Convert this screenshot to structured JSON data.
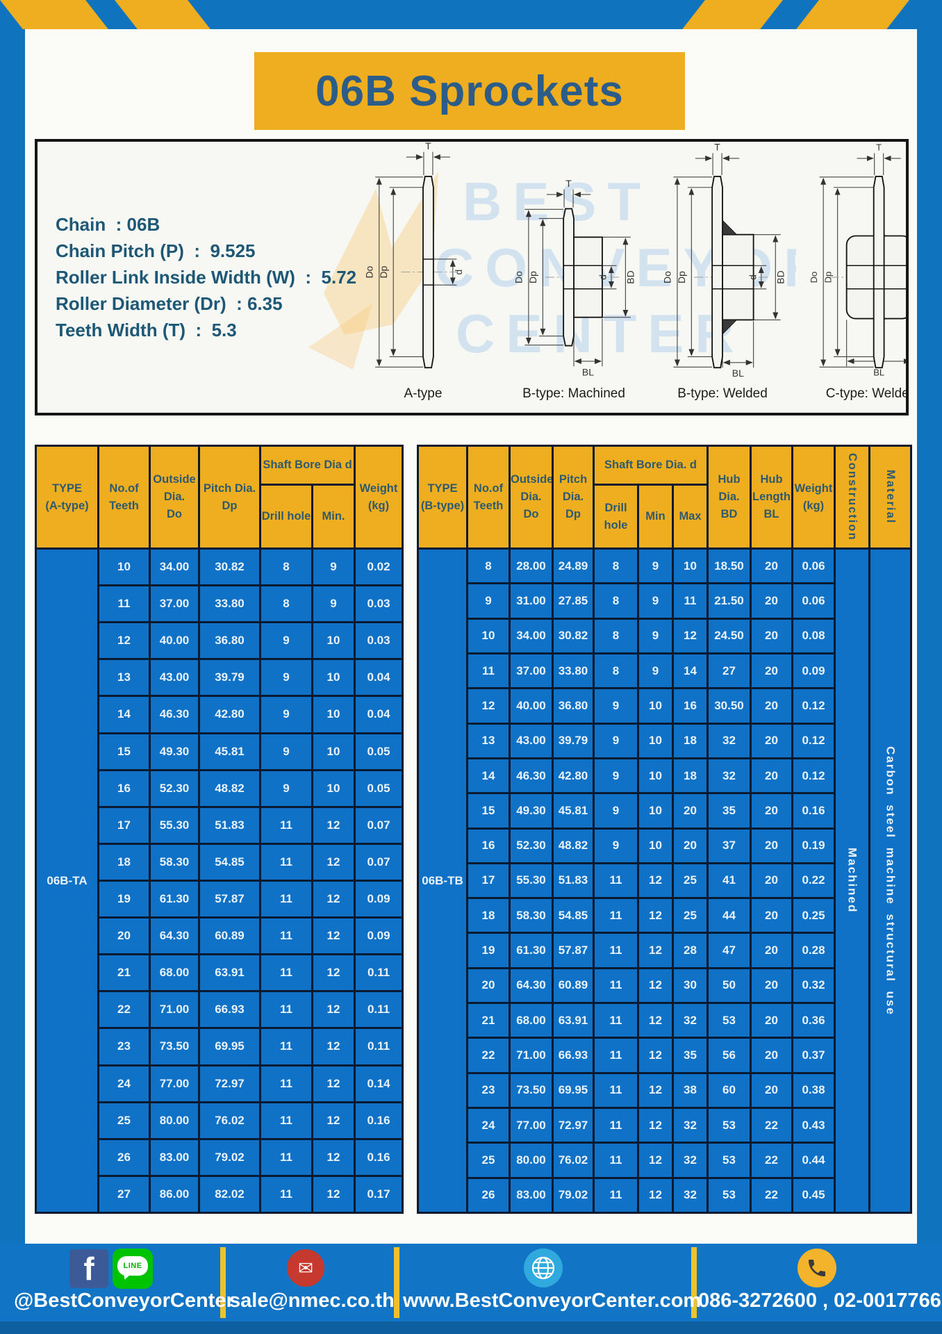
{
  "title": "06B Sprockets",
  "specs": {
    "lines": "Chain  : 06B\nChain Pitch (P)  :  9.525\nRoller Link Inside Width (W)  :  5.72\nRoller Diameter (Dr)  : 6.35\nTeeth Width (T)  :  5.3"
  },
  "diagrams": {
    "dims": {
      "T": "T",
      "Do": "Do",
      "Dp": "Dp",
      "d": "d",
      "BD": "BD",
      "BL": "BL"
    },
    "figures": [
      {
        "label": "A-type"
      },
      {
        "label": "B-type: Machined"
      },
      {
        "label": "B-type: Welded"
      },
      {
        "label": "C-type: Welded"
      }
    ],
    "watermark": {
      "line1": "BEST",
      "line2": "CONVEYOR",
      "line3": "CENTER"
    }
  },
  "tables": {
    "a": {
      "type_label": "06B-TA",
      "headers": {
        "type": "TYPE\n(A-type)",
        "teeth": "No.of\nTeeth",
        "outside": "Outside\nDia.\nDo",
        "pitch": "Pitch Dia.\nDp",
        "shaft": "Shaft Bore Dia d",
        "drill": "Drill hole",
        "min": "Min.",
        "weight": "Weight\n(kg)"
      },
      "rows": [
        [
          "10",
          "34.00",
          "30.82",
          "8",
          "9",
          "0.02"
        ],
        [
          "11",
          "37.00",
          "33.80",
          "8",
          "9",
          "0.03"
        ],
        [
          "12",
          "40.00",
          "36.80",
          "9",
          "10",
          "0.03"
        ],
        [
          "13",
          "43.00",
          "39.79",
          "9",
          "10",
          "0.04"
        ],
        [
          "14",
          "46.30",
          "42.80",
          "9",
          "10",
          "0.04"
        ],
        [
          "15",
          "49.30",
          "45.81",
          "9",
          "10",
          "0.05"
        ],
        [
          "16",
          "52.30",
          "48.82",
          "9",
          "10",
          "0.05"
        ],
        [
          "17",
          "55.30",
          "51.83",
          "11",
          "12",
          "0.07"
        ],
        [
          "18",
          "58.30",
          "54.85",
          "11",
          "12",
          "0.07"
        ],
        [
          "19",
          "61.30",
          "57.87",
          "11",
          "12",
          "0.09"
        ],
        [
          "20",
          "64.30",
          "60.89",
          "11",
          "12",
          "0.09"
        ],
        [
          "21",
          "68.00",
          "63.91",
          "11",
          "12",
          "0.11"
        ],
        [
          "22",
          "71.00",
          "66.93",
          "11",
          "12",
          "0.11"
        ],
        [
          "23",
          "73.50",
          "69.95",
          "11",
          "12",
          "0.11"
        ],
        [
          "24",
          "77.00",
          "72.97",
          "11",
          "12",
          "0.14"
        ],
        [
          "25",
          "80.00",
          "76.02",
          "11",
          "12",
          "0.16"
        ],
        [
          "26",
          "83.00",
          "79.02",
          "11",
          "12",
          "0.16"
        ],
        [
          "27",
          "86.00",
          "82.02",
          "11",
          "12",
          "0.17"
        ]
      ]
    },
    "b": {
      "type_label": "06B-TB",
      "construction": "Machined",
      "material": "Carbon steel machine structural use",
      "headers": {
        "type": "TYPE\n(B-type)",
        "teeth": "No.of\nTeeth",
        "outside": "Outside\nDia.\nDo",
        "pitch": "Pitch\nDia.\nDp",
        "shaft": "Shaft Bore Dia. d",
        "drill": "Drill hole",
        "min": "Min",
        "max": "Max",
        "hub_dia": "Hub\nDia.\nBD",
        "hub_len": "Hub\nLength\nBL",
        "weight": "Weight\n(kg)",
        "construction": "Construction",
        "material": "Material"
      },
      "rows": [
        [
          "8",
          "28.00",
          "24.89",
          "8",
          "9",
          "10",
          "18.50",
          "20",
          "0.06"
        ],
        [
          "9",
          "31.00",
          "27.85",
          "8",
          "9",
          "11",
          "21.50",
          "20",
          "0.06"
        ],
        [
          "10",
          "34.00",
          "30.82",
          "8",
          "9",
          "12",
          "24.50",
          "20",
          "0.08"
        ],
        [
          "11",
          "37.00",
          "33.80",
          "8",
          "9",
          "14",
          "27",
          "20",
          "0.09"
        ],
        [
          "12",
          "40.00",
          "36.80",
          "9",
          "10",
          "16",
          "30.50",
          "20",
          "0.12"
        ],
        [
          "13",
          "43.00",
          "39.79",
          "9",
          "10",
          "18",
          "32",
          "20",
          "0.12"
        ],
        [
          "14",
          "46.30",
          "42.80",
          "9",
          "10",
          "18",
          "32",
          "20",
          "0.12"
        ],
        [
          "15",
          "49.30",
          "45.81",
          "9",
          "10",
          "20",
          "35",
          "20",
          "0.16"
        ],
        [
          "16",
          "52.30",
          "48.82",
          "9",
          "10",
          "20",
          "37",
          "20",
          "0.19"
        ],
        [
          "17",
          "55.30",
          "51.83",
          "11",
          "12",
          "25",
          "41",
          "20",
          "0.22"
        ],
        [
          "18",
          "58.30",
          "54.85",
          "11",
          "12",
          "25",
          "44",
          "20",
          "0.25"
        ],
        [
          "19",
          "61.30",
          "57.87",
          "11",
          "12",
          "28",
          "47",
          "20",
          "0.28"
        ],
        [
          "20",
          "64.30",
          "60.89",
          "11",
          "12",
          "30",
          "50",
          "20",
          "0.32"
        ],
        [
          "21",
          "68.00",
          "63.91",
          "11",
          "12",
          "32",
          "53",
          "20",
          "0.36"
        ],
        [
          "22",
          "71.00",
          "66.93",
          "11",
          "12",
          "35",
          "56",
          "20",
          "0.37"
        ],
        [
          "23",
          "73.50",
          "69.95",
          "11",
          "12",
          "38",
          "60",
          "20",
          "0.38"
        ],
        [
          "24",
          "77.00",
          "72.97",
          "11",
          "12",
          "32",
          "53",
          "22",
          "0.43"
        ],
        [
          "25",
          "80.00",
          "76.02",
          "11",
          "12",
          "32",
          "53",
          "22",
          "0.44"
        ],
        [
          "26",
          "83.00",
          "79.02",
          "11",
          "12",
          "32",
          "53",
          "22",
          "0.45"
        ]
      ]
    }
  },
  "footer": {
    "social_label": "@BestConveyorCenter",
    "email": "sale@nmec.co.th",
    "website": "www.BestConveyorCenter.com",
    "phones": "086-3272600 , 02-0017766",
    "fb_letter": "f",
    "line_text": "LINE",
    "mail_glyph": "✉"
  },
  "colors": {
    "frame_blue": "#1073BE",
    "cell_blue": "#0F72C6",
    "accent_yellow": "#EFAE1F",
    "title_text": "#2C5C88",
    "table_border": "#0A1A30"
  }
}
